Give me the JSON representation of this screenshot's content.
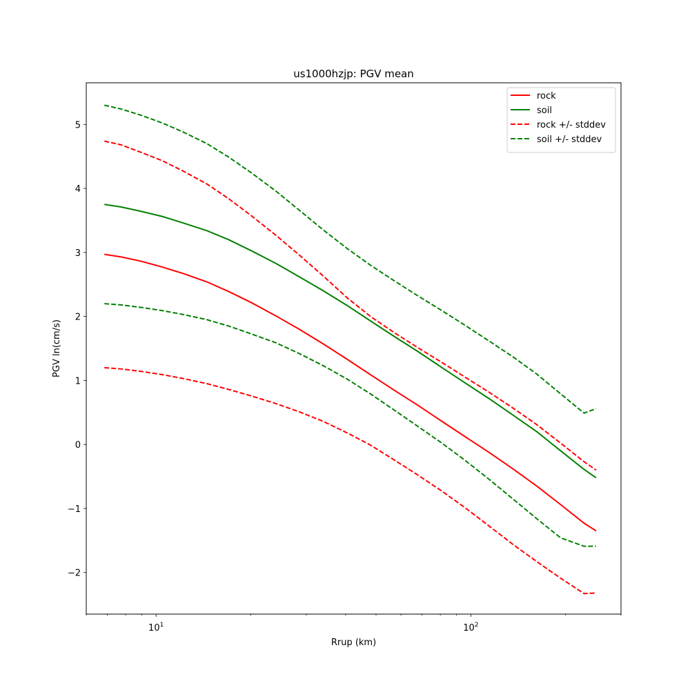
{
  "chart_data": {
    "type": "line",
    "title": "us1000hzjp: PGV mean",
    "xlabel": "Rrup (km)",
    "ylabel": "PGV ln(cm/s)",
    "xscale": "log",
    "xlim": [
      6.0,
      300.0
    ],
    "ylim": [
      -2.65,
      5.65
    ],
    "x_ticks": [
      {
        "value": 10,
        "base": "10",
        "exp": "1"
      },
      {
        "value": 100,
        "base": "10",
        "exp": "2"
      }
    ],
    "y_ticks": [
      {
        "value": -2,
        "label": "−2"
      },
      {
        "value": -1,
        "label": "−1"
      },
      {
        "value": 0,
        "label": "0"
      },
      {
        "value": 1,
        "label": "1"
      },
      {
        "value": 2,
        "label": "2"
      },
      {
        "value": 3,
        "label": "3"
      },
      {
        "value": 4,
        "label": "4"
      },
      {
        "value": 5,
        "label": "5"
      }
    ],
    "grid": false,
    "legend": {
      "position": "top-right"
    },
    "x": [
      6.85,
      7.75,
      9.0,
      10.5,
      12.2,
      14.5,
      17.0,
      20.0,
      24.0,
      28.5,
      34.0,
      40.5,
      48.0,
      57.0,
      68.0,
      81.0,
      96.0,
      114.0,
      136.0,
      162.0,
      193.0,
      229.0,
      250.0
    ],
    "series": [
      {
        "name": "rock",
        "color": "#ff0000",
        "dash": "solid",
        "legend": true,
        "values": [
          2.97,
          2.93,
          2.86,
          2.77,
          2.67,
          2.54,
          2.39,
          2.22,
          2.01,
          1.8,
          1.57,
          1.33,
          1.09,
          0.85,
          0.61,
          0.36,
          0.12,
          -0.12,
          -0.38,
          -0.65,
          -0.94,
          -1.23,
          -1.35
        ]
      },
      {
        "name": "soil",
        "color": "#008000",
        "dash": "solid",
        "legend": true,
        "values": [
          3.75,
          3.71,
          3.64,
          3.56,
          3.46,
          3.34,
          3.2,
          3.03,
          2.83,
          2.62,
          2.4,
          2.17,
          1.93,
          1.69,
          1.45,
          1.2,
          0.96,
          0.72,
          0.46,
          0.2,
          -0.1,
          -0.39,
          -0.52
        ]
      },
      {
        "name": "rock +/- stddev",
        "color": "#ff0000",
        "dash": "dashed",
        "legend": true,
        "values": [
          4.74,
          4.68,
          4.56,
          4.43,
          4.27,
          4.07,
          3.84,
          3.58,
          3.27,
          2.96,
          2.63,
          2.29,
          2.0,
          1.75,
          1.51,
          1.28,
          1.05,
          0.82,
          0.57,
          0.31,
          0.02,
          -0.27,
          -0.4
        ]
      },
      {
        "name": "",
        "color": "#ff0000",
        "dash": "dashed",
        "legend": false,
        "values": [
          1.2,
          1.18,
          1.14,
          1.09,
          1.03,
          0.95,
          0.86,
          0.76,
          0.64,
          0.51,
          0.36,
          0.18,
          -0.01,
          -0.24,
          -0.48,
          -0.73,
          -0.99,
          -1.27,
          -1.56,
          -1.83,
          -2.09,
          -2.33,
          -2.32
        ]
      },
      {
        "name": "soil +/- stddev",
        "color": "#008000",
        "dash": "dashed",
        "legend": true,
        "values": [
          5.3,
          5.24,
          5.14,
          5.02,
          4.88,
          4.7,
          4.49,
          4.25,
          3.96,
          3.66,
          3.35,
          3.06,
          2.8,
          2.56,
          2.32,
          2.09,
          1.86,
          1.62,
          1.37,
          1.1,
          0.79,
          0.49,
          0.56
        ]
      },
      {
        "name": "",
        "color": "#008000",
        "dash": "dashed",
        "legend": false,
        "values": [
          2.2,
          2.18,
          2.14,
          2.09,
          2.03,
          1.95,
          1.85,
          1.73,
          1.59,
          1.42,
          1.23,
          1.02,
          0.79,
          0.54,
          0.28,
          0.02,
          -0.25,
          -0.54,
          -0.85,
          -1.16,
          -1.46,
          -1.59,
          -1.59
        ]
      }
    ]
  }
}
